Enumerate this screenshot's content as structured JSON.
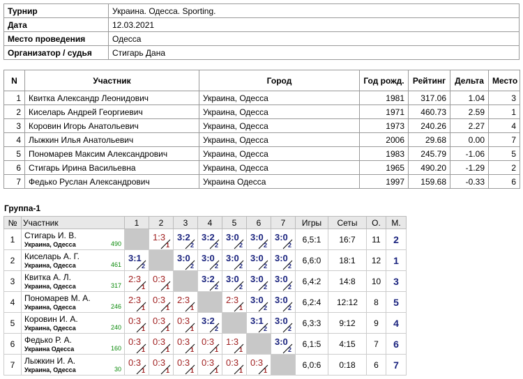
{
  "info": {
    "rows": [
      [
        "Турнир",
        "Украина. Одесса. Sporting."
      ],
      [
        "Дата",
        "12.03.2021"
      ],
      [
        "Место проведения",
        "Одесса"
      ],
      [
        "Организатор / судья",
        "Стигарь Дана"
      ]
    ]
  },
  "participants": {
    "headers": [
      "N",
      "Участник",
      "Город",
      "Год рожд.",
      "Рейтинг",
      "Дельта",
      "Место"
    ],
    "rows": [
      [
        "1",
        "Квитка Александр Леонидович",
        "Украина, Одесса",
        "1981",
        "317.06",
        "1.04",
        "3"
      ],
      [
        "2",
        "Киселарь Андрей Георгиевич",
        "Украина, Одесса",
        "1971",
        "460.73",
        "2.59",
        "1"
      ],
      [
        "3",
        "Коровин Игорь Анатольевич",
        "Украина, Одесса",
        "1973",
        "240.26",
        "2.27",
        "4"
      ],
      [
        "4",
        "Лыжкин Илья Анатольевич",
        "Украина, Одесса",
        "2006",
        "29.68",
        "0.00",
        "7"
      ],
      [
        "5",
        "Пономарев Максим Александрович",
        "Украина, Одесса",
        "1983",
        "245.79",
        "-1.06",
        "5"
      ],
      [
        "6",
        "Стигарь Ирина Васильевна",
        "Украина, Одесса",
        "1965",
        "490.20",
        "-1.29",
        "2"
      ],
      [
        "7",
        "Федько Руслан Александрович",
        "Украина Одесса",
        "1997",
        "159.68",
        "-0.33",
        "6"
      ]
    ]
  },
  "group": {
    "title": "Группа-1",
    "headers": [
      "№",
      "Участник",
      "1",
      "2",
      "3",
      "4",
      "5",
      "6",
      "7",
      "Игры",
      "Сеты",
      "О.",
      "М."
    ],
    "rows": [
      {
        "n": "1",
        "name": "Стигарь И. В.",
        "city": "Украина, Одесса",
        "rating": "490",
        "results": [
          null,
          {
            "score": "1:3",
            "points": "1"
          },
          {
            "score": "3:2",
            "points": "2"
          },
          {
            "score": "3:2",
            "points": "2"
          },
          {
            "score": "3:0",
            "points": "2"
          },
          {
            "score": "3:0",
            "points": "2"
          },
          {
            "score": "3:0",
            "points": "2"
          }
        ],
        "games": "6,5:1",
        "sets": "16:7",
        "total": "11",
        "place": "2"
      },
      {
        "n": "2",
        "name": "Киселарь А. Г.",
        "city": "Украина, Одесса",
        "rating": "461",
        "results": [
          {
            "score": "3:1",
            "points": "2"
          },
          null,
          {
            "score": "3:0",
            "points": "2"
          },
          {
            "score": "3:0",
            "points": "2"
          },
          {
            "score": "3:0",
            "points": "2"
          },
          {
            "score": "3:0",
            "points": "2"
          },
          {
            "score": "3:0",
            "points": "2"
          }
        ],
        "games": "6,6:0",
        "sets": "18:1",
        "total": "12",
        "place": "1"
      },
      {
        "n": "3",
        "name": "Квитка А. Л.",
        "city": "Украина, Одесса",
        "rating": "317",
        "results": [
          {
            "score": "2:3",
            "points": "1"
          },
          {
            "score": "0:3",
            "points": "1"
          },
          null,
          {
            "score": "3:2",
            "points": "2"
          },
          {
            "score": "3:0",
            "points": "2"
          },
          {
            "score": "3:0",
            "points": "2"
          },
          {
            "score": "3:0",
            "points": "2"
          }
        ],
        "games": "6,4:2",
        "sets": "14:8",
        "total": "10",
        "place": "3"
      },
      {
        "n": "4",
        "name": "Пономарев М. А.",
        "city": "Украина, Одесса",
        "rating": "246",
        "results": [
          {
            "score": "2:3",
            "points": "1"
          },
          {
            "score": "0:3",
            "points": "1"
          },
          {
            "score": "2:3",
            "points": "1"
          },
          null,
          {
            "score": "2:3",
            "points": "1"
          },
          {
            "score": "3:0",
            "points": "2"
          },
          {
            "score": "3:0",
            "points": "2"
          }
        ],
        "games": "6,2:4",
        "sets": "12:12",
        "total": "8",
        "place": "5"
      },
      {
        "n": "5",
        "name": "Коровин И. А.",
        "city": "Украина, Одесса",
        "rating": "240",
        "results": [
          {
            "score": "0:3",
            "points": "1"
          },
          {
            "score": "0:3",
            "points": "1"
          },
          {
            "score": "0:3",
            "points": "1"
          },
          {
            "score": "3:2",
            "points": "2"
          },
          null,
          {
            "score": "3:1",
            "points": "2"
          },
          {
            "score": "3:0",
            "points": "2"
          }
        ],
        "games": "6,3:3",
        "sets": "9:12",
        "total": "9",
        "place": "4"
      },
      {
        "n": "6",
        "name": "Федько Р. А.",
        "city": "Украина Одесса",
        "rating": "160",
        "results": [
          {
            "score": "0:3",
            "points": "1"
          },
          {
            "score": "0:3",
            "points": "1"
          },
          {
            "score": "0:3",
            "points": "1"
          },
          {
            "score": "0:3",
            "points": "1"
          },
          {
            "score": "1:3",
            "points": "1"
          },
          null,
          {
            "score": "3:0",
            "points": "2"
          }
        ],
        "games": "6,1:5",
        "sets": "4:15",
        "total": "7",
        "place": "6"
      },
      {
        "n": "7",
        "name": "Лыжкин И. А.",
        "city": "Украина, Одесса",
        "rating": "30",
        "results": [
          {
            "score": "0:3",
            "points": "1"
          },
          {
            "score": "0:3",
            "points": "1"
          },
          {
            "score": "0:3",
            "points": "1"
          },
          {
            "score": "0:3",
            "points": "1"
          },
          {
            "score": "0:3",
            "points": "1"
          },
          {
            "score": "0:3",
            "points": "1"
          },
          null
        ],
        "games": "6,0:6",
        "sets": "0:18",
        "total": "6",
        "place": "7"
      }
    ]
  }
}
